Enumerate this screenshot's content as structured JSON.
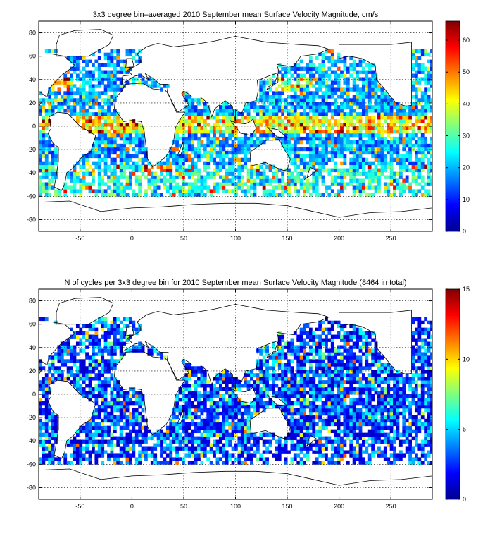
{
  "chart_data": [
    {
      "type": "heatmap",
      "title": "3x3 degree bin–averaged 2010 September mean Surface Velocity Magnitude, cm/s",
      "xlabel": "",
      "ylabel": "",
      "xlim": [
        -90,
        290
      ],
      "ylim": [
        -90,
        90
      ],
      "x_ticks": [
        -50,
        0,
        50,
        100,
        150,
        200,
        250
      ],
      "y_ticks": [
        -80,
        -60,
        -40,
        -20,
        0,
        20,
        40,
        60,
        80
      ],
      "bin_size_deg": 3,
      "grid": true,
      "colorbar": {
        "min": 0,
        "max": 66,
        "ticks": [
          0,
          10,
          20,
          30,
          40,
          50,
          60
        ],
        "colormap": "jet"
      },
      "field": "velocity"
    },
    {
      "type": "heatmap",
      "title": "N of cycles per 3x3 degree bin for 2010 September mean Surface Velocity Magnitude (8464 in total)",
      "xlabel": "",
      "ylabel": "",
      "xlim": [
        -90,
        290
      ],
      "ylim": [
        -90,
        90
      ],
      "x_ticks": [
        -50,
        0,
        50,
        100,
        150,
        200,
        250
      ],
      "y_ticks": [
        -80,
        -60,
        -40,
        -20,
        0,
        20,
        40,
        60,
        80
      ],
      "bin_size_deg": 3,
      "grid": true,
      "colorbar": {
        "min": 0,
        "max": 15,
        "ticks": [
          0,
          5,
          10,
          15
        ],
        "colormap": "jet"
      },
      "field": "cycles"
    }
  ]
}
